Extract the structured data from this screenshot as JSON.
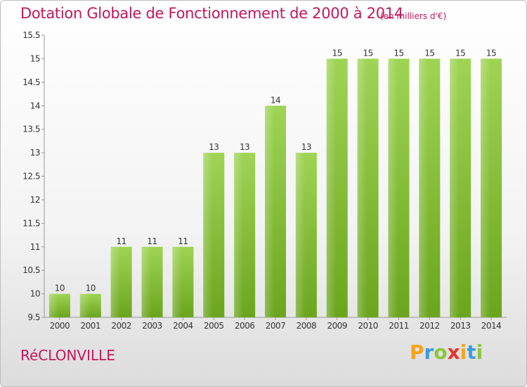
{
  "chart_data": {
    "type": "bar",
    "title": "Dotation Globale de Fonctionnement de 2000 à 2014",
    "subtitle": "(en milliers d'€)",
    "xlabel": "",
    "ylabel": "",
    "categories": [
      "2000",
      "2001",
      "2002",
      "2003",
      "2004",
      "2005",
      "2006",
      "2007",
      "2008",
      "2009",
      "2010",
      "2011",
      "2012",
      "2013",
      "2014"
    ],
    "values": [
      10,
      10,
      11,
      11,
      11,
      13,
      13,
      14,
      13,
      15,
      15,
      15,
      15,
      15,
      15
    ],
    "ylim": [
      9.5,
      15.5
    ],
    "yticks": [
      "9.5",
      "10",
      "10.5",
      "11",
      "11.5",
      "12",
      "12.5",
      "13",
      "13.5",
      "14",
      "14.5",
      "15",
      "15.5"
    ],
    "grid": false,
    "bar_color": "#8cc63f"
  },
  "footer": {
    "town": "RéCLONVILLE",
    "logo_letters": [
      "P",
      "r",
      "o",
      "x",
      "i",
      "t",
      "i"
    ],
    "logo_colors": [
      "#f7a21b",
      "#3d9cd9",
      "#8cc63f",
      "#e6332a",
      "#f7a21b",
      "#3d9cd9",
      "#8cc63f"
    ]
  }
}
